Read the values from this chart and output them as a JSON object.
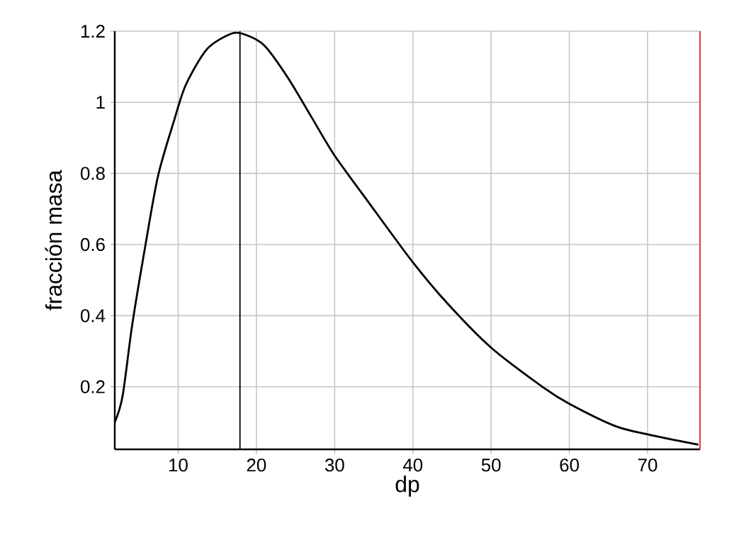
{
  "chart_data": {
    "type": "line",
    "xlabel": "dp",
    "ylabel": "fracción masa",
    "x": [
      1.9,
      2.9,
      4.1,
      5.6,
      7.4,
      9.5,
      11.0,
      13.7,
      16.8,
      18.6,
      21.0,
      24.0,
      27.0,
      30.0,
      34.3,
      40.0,
      44.6,
      50.0,
      56.8,
      60.0,
      65.8,
      70.0,
      76.5
    ],
    "series": [
      {
        "color": "#000000",
        "values": [
          0.1,
          0.174,
          0.37,
          0.57,
          0.79,
          0.95,
          1.05,
          1.15,
          1.193,
          1.19,
          1.16,
          1.07,
          0.96,
          0.85,
          0.72,
          0.55,
          0.43,
          0.31,
          0.196,
          0.152,
          0.09,
          0.066,
          0.037
        ]
      }
    ],
    "xlim": [
      1.9,
      76.7
    ],
    "ylim": [
      0.024,
      1.2
    ],
    "xticks": [
      10,
      20,
      30,
      40,
      50,
      60,
      70
    ],
    "yticks": [
      0.2,
      0.4,
      0.6,
      0.8,
      1,
      1.2
    ],
    "ref_lines": [
      {
        "axis": "x",
        "value": 17.9,
        "color": "#000000"
      },
      {
        "axis": "x",
        "value": 76.7,
        "color": "#e8202a"
      }
    ],
    "grid": true,
    "marker": "none",
    "line_style": "solid"
  }
}
